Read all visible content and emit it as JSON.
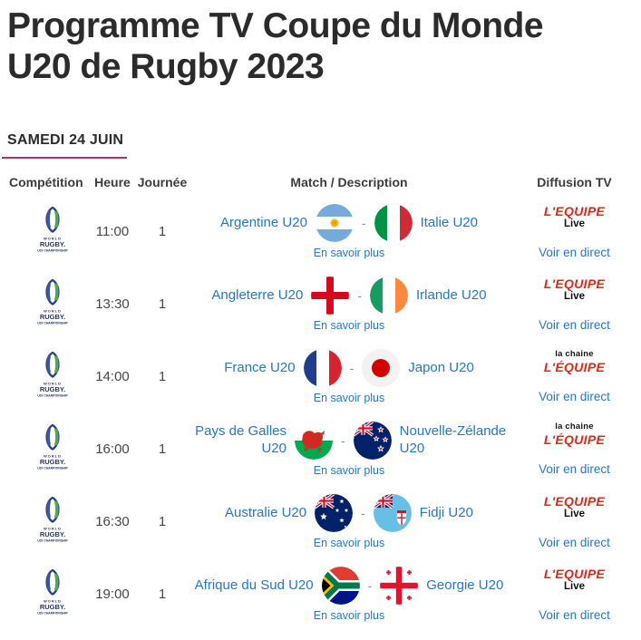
{
  "page": {
    "title": "Programme TV Coupe du Monde U20 de Rugby 2023",
    "section_date": "SAMEDI 24 JUIN"
  },
  "table": {
    "headers": {
      "competition": "Compétition",
      "heure": "Heure",
      "journee": "Journée",
      "match": "Match / Description",
      "diffusion": "Diffusion TV"
    },
    "competition_logo": {
      "line1": "WORLD",
      "line2": "RUGBY.",
      "line3": "U20 CHAMPIONSHIP"
    },
    "labels": {
      "more": "En savoir plus",
      "watch": "Voir en direct",
      "vs_separator": "-"
    },
    "broadcasters": {
      "lequipe_live": {
        "line1": "L'EQUIPE",
        "line2": "Live"
      },
      "la_chaine_lequipe": {
        "line1": "la chaine",
        "line2": "L'ÉQUIPE"
      }
    },
    "rows": [
      {
        "time": "11:00",
        "day": "1",
        "home": "Argentine U20",
        "away": "Italie U20",
        "home_flag": "argentina",
        "away_flag": "italy",
        "broadcaster": "lequipe_live"
      },
      {
        "time": "13:30",
        "day": "1",
        "home": "Angleterre U20",
        "away": "Irlande U20",
        "home_flag": "england",
        "away_flag": "ireland",
        "broadcaster": "lequipe_live"
      },
      {
        "time": "14:00",
        "day": "1",
        "home": "France U20",
        "away": "Japon U20",
        "home_flag": "france",
        "away_flag": "japan",
        "broadcaster": "la_chaine_lequipe"
      },
      {
        "time": "16:00",
        "day": "1",
        "home": "Pays de Galles U20",
        "away": "Nouvelle-Zélande U20",
        "home_flag": "wales",
        "away_flag": "new-zealand",
        "broadcaster": "la_chaine_lequipe"
      },
      {
        "time": "16:30",
        "day": "1",
        "home": "Australie U20",
        "away": "Fidji U20",
        "home_flag": "australia",
        "away_flag": "fiji",
        "broadcaster": "lequipe_live"
      },
      {
        "time": "19:00",
        "day": "1",
        "home": "Afrique du Sud U20",
        "away": "Georgie U20",
        "home_flag": "south-africa",
        "away_flag": "georgia",
        "broadcaster": "lequipe_live"
      }
    ]
  },
  "colors": {
    "accent_pink": "#a83863",
    "link_blue": "#2577c8",
    "lequipe_red": "#e1251b",
    "title_dark": "#2b2b2b"
  }
}
